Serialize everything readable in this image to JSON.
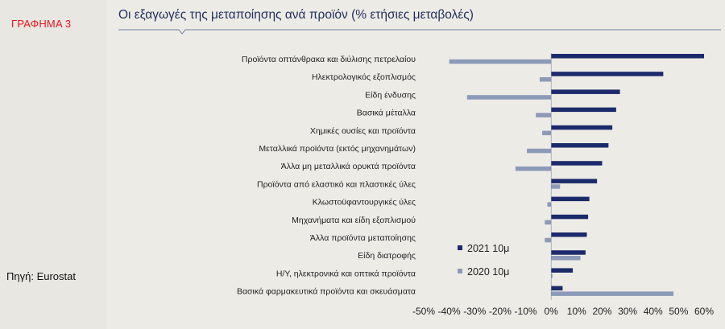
{
  "sidebar": {
    "chart_label": "ΓΡΑΦΗΜΑ 3",
    "source": "Πηγή: Eurostat"
  },
  "chart_data": {
    "type": "bar",
    "orientation": "horizontal",
    "title": "Οι εξαγωγές της μεταποίησης ανά προϊόν (% ετήσιες μεταβολές)",
    "categories": [
      "Προϊόντα οπτάνθρακα και διύλισης πετρελαίου",
      "Ηλεκτρολογικός εξοπλισμός",
      "Είδη ένδυσης",
      "Βασικά μέταλλα",
      "Χημικές ουσίες και προϊόντα",
      "Μεταλλικά προϊόντα (εκτός μηχανημάτων)",
      "Άλλα μη μεταλλικά ορυκτά προϊόντα",
      "Προϊόντα από ελαστικό και πλαστικές ύλες",
      "Κλωστοϋφαντουργικές ύλες",
      "Μηχανήματα και είδη εξοπλισμού",
      "Άλλα προϊόντα μεταποίησης",
      "Είδη διατροφής",
      "Η/Υ, ηλεκτρονικά και οπτικά προϊόντα",
      "Βασικά φαρμακευτικά προϊόντα και σκευάσματα"
    ],
    "series": [
      {
        "name": "2021 10μ",
        "color": "#1b2a6b",
        "values": [
          60,
          44,
          27,
          25.5,
          24,
          22.5,
          20,
          18,
          15,
          14.5,
          14,
          13.5,
          8.5,
          4.5
        ]
      },
      {
        "name": "2020 10μ",
        "color": "#8c9ab8",
        "values": [
          -40,
          -4.5,
          -33,
          -6,
          -3.5,
          -9.5,
          -14,
          3.5,
          -1.5,
          -2.5,
          -2.5,
          11.5,
          0.5,
          48
        ]
      }
    ],
    "xlim": [
      -50,
      60
    ],
    "xticks": [
      -50,
      -40,
      -30,
      -20,
      -10,
      0,
      10,
      20,
      30,
      40,
      50,
      60
    ],
    "tick_format": "percent",
    "legend_position": "bottom-center",
    "grid": false
  }
}
